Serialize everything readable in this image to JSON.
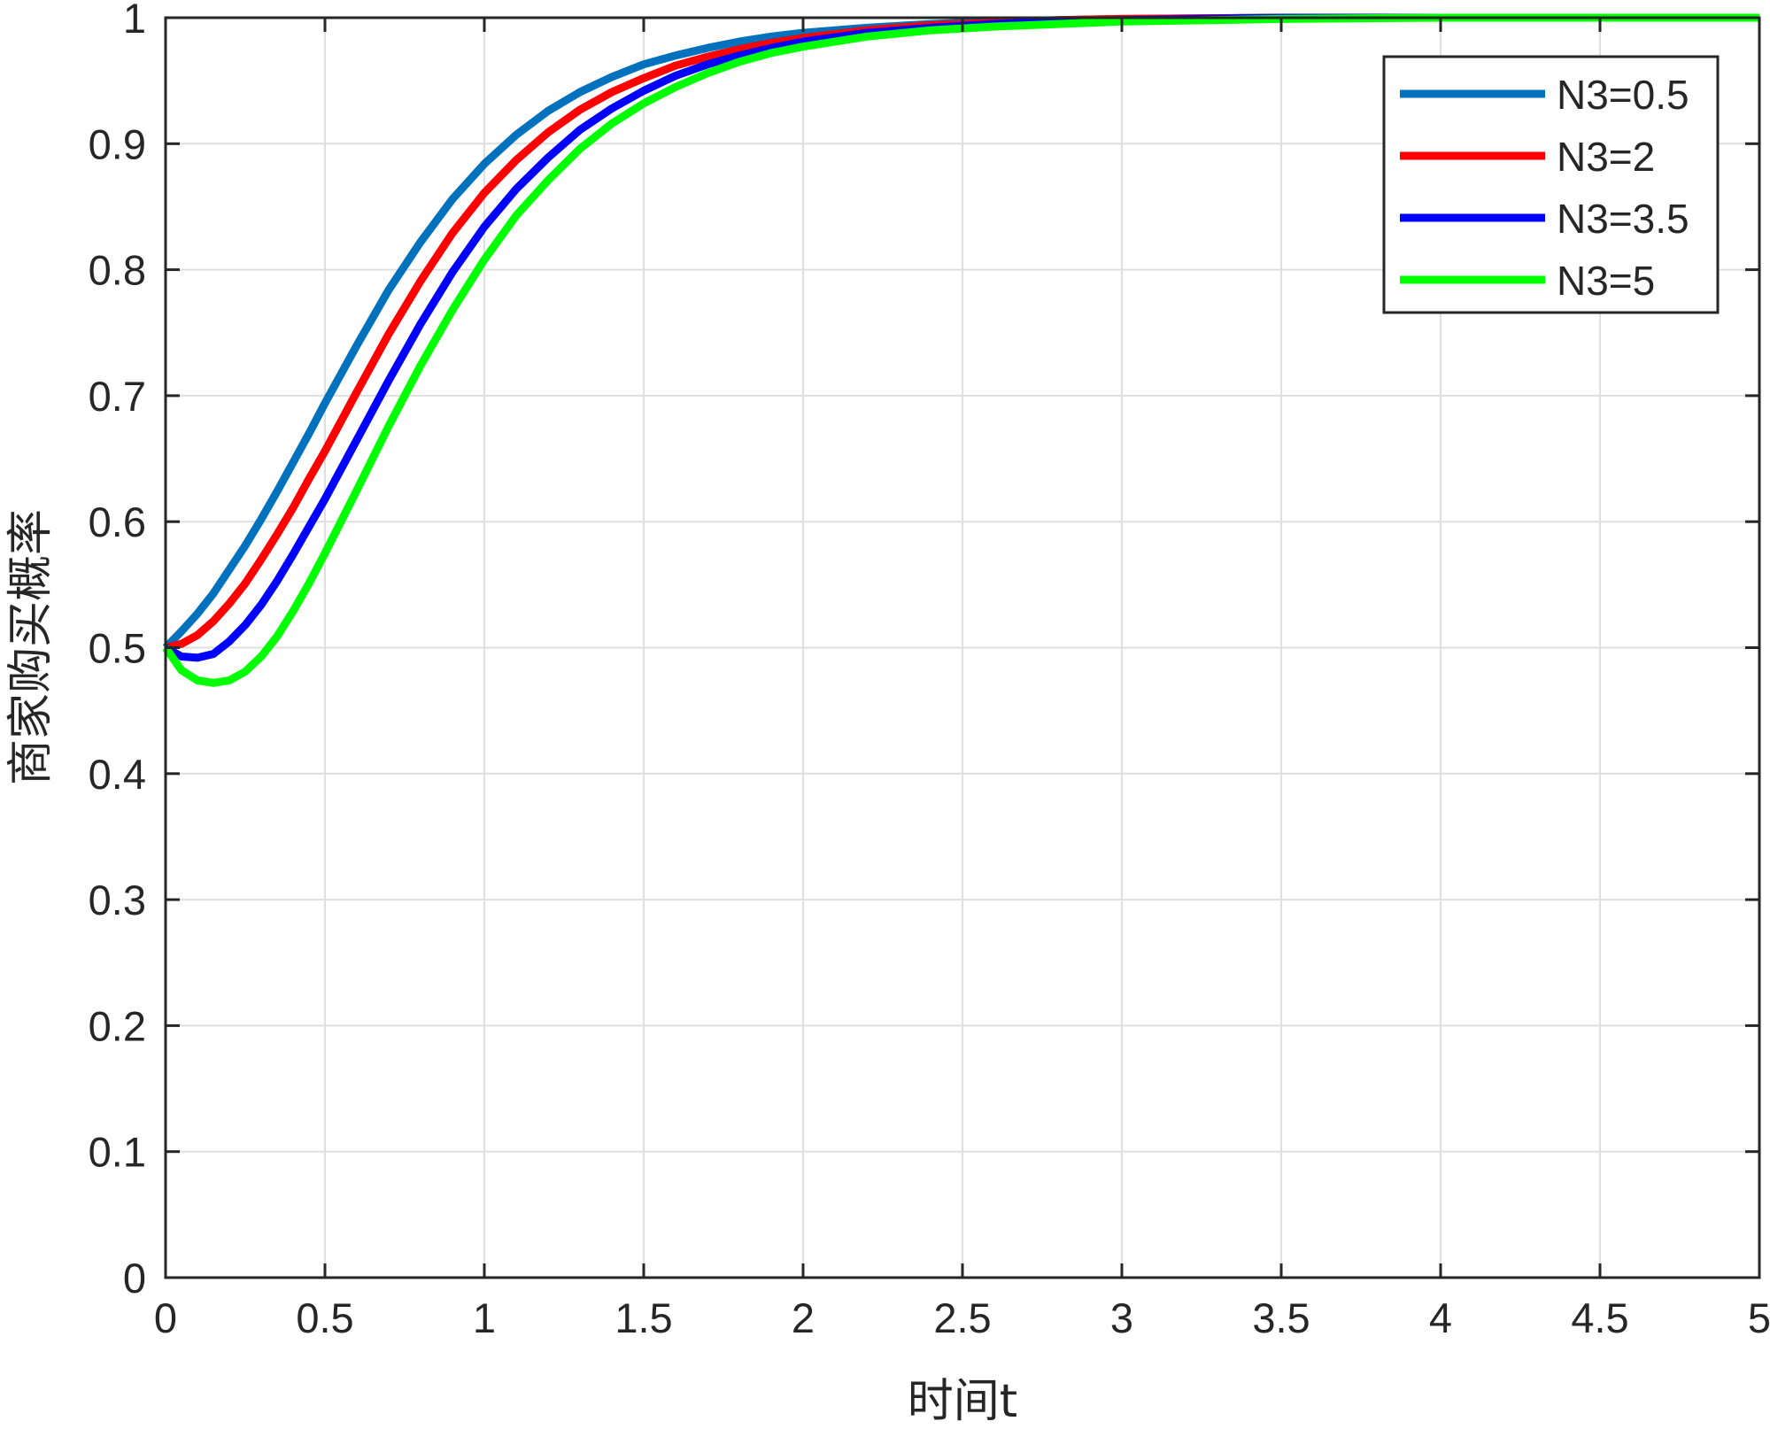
{
  "chart_data": {
    "type": "line",
    "title": "",
    "xlabel": "时间t",
    "ylabel": "商家购买概率",
    "xlim": [
      0,
      5
    ],
    "ylim": [
      0,
      1
    ],
    "xticks": [
      {
        "value": 0,
        "label": "0"
      },
      {
        "value": 0.5,
        "label": "0.5"
      },
      {
        "value": 1,
        "label": "1"
      },
      {
        "value": 1.5,
        "label": "1.5"
      },
      {
        "value": 2,
        "label": "2"
      },
      {
        "value": 2.5,
        "label": "2.5"
      },
      {
        "value": 3,
        "label": "3"
      },
      {
        "value": 3.5,
        "label": "3.5"
      },
      {
        "value": 4,
        "label": "4"
      },
      {
        "value": 4.5,
        "label": "4.5"
      },
      {
        "value": 5,
        "label": "5"
      }
    ],
    "yticks": [
      {
        "value": 0,
        "label": "0"
      },
      {
        "value": 0.1,
        "label": "0.1"
      },
      {
        "value": 0.2,
        "label": "0.2"
      },
      {
        "value": 0.3,
        "label": "0.3"
      },
      {
        "value": 0.4,
        "label": "0.4"
      },
      {
        "value": 0.5,
        "label": "0.5"
      },
      {
        "value": 0.6,
        "label": "0.6"
      },
      {
        "value": 0.7,
        "label": "0.7"
      },
      {
        "value": 0.8,
        "label": "0.8"
      },
      {
        "value": 0.9,
        "label": "0.9"
      },
      {
        "value": 1,
        "label": "1"
      }
    ],
    "grid": true,
    "legend_position": "top-right",
    "x": [
      0,
      0.05,
      0.1,
      0.15,
      0.2,
      0.25,
      0.3,
      0.35,
      0.4,
      0.45,
      0.5,
      0.6,
      0.7,
      0.8,
      0.9,
      1.0,
      1.1,
      1.2,
      1.3,
      1.4,
      1.5,
      1.6,
      1.7,
      1.8,
      1.9,
      2.0,
      2.2,
      2.4,
      2.6,
      2.8,
      3.0,
      3.5,
      4.0,
      4.5,
      5.0
    ],
    "series": [
      {
        "name": "N3=0.5",
        "color": "#0072bd",
        "values": [
          0.5,
          0.513,
          0.527,
          0.543,
          0.562,
          0.581,
          0.602,
          0.624,
          0.647,
          0.67,
          0.694,
          0.74,
          0.784,
          0.822,
          0.856,
          0.884,
          0.907,
          0.926,
          0.941,
          0.953,
          0.963,
          0.97,
          0.976,
          0.981,
          0.985,
          0.988,
          0.992,
          0.995,
          0.997,
          0.998,
          0.999,
          1.0,
          1.0,
          1.0,
          1.0
        ]
      },
      {
        "name": "N3=2",
        "color": "#ff0000",
        "values": [
          0.5,
          0.503,
          0.51,
          0.521,
          0.535,
          0.551,
          0.57,
          0.59,
          0.611,
          0.634,
          0.656,
          0.703,
          0.749,
          0.791,
          0.829,
          0.861,
          0.887,
          0.909,
          0.927,
          0.941,
          0.952,
          0.962,
          0.969,
          0.975,
          0.98,
          0.984,
          0.99,
          0.994,
          0.996,
          0.998,
          0.999,
          1.0,
          1.0,
          1.0,
          1.0
        ]
      },
      {
        "name": "N3=3.5",
        "color": "#0000ff",
        "values": [
          0.5,
          0.493,
          0.492,
          0.495,
          0.505,
          0.518,
          0.534,
          0.553,
          0.574,
          0.596,
          0.618,
          0.665,
          0.712,
          0.757,
          0.798,
          0.834,
          0.864,
          0.889,
          0.911,
          0.928,
          0.942,
          0.954,
          0.963,
          0.97,
          0.976,
          0.981,
          0.988,
          0.992,
          0.995,
          0.997,
          0.998,
          1.0,
          1.0,
          1.0,
          1.0
        ]
      },
      {
        "name": "N3=5",
        "color": "#00ff00",
        "values": [
          0.5,
          0.482,
          0.474,
          0.472,
          0.474,
          0.481,
          0.493,
          0.509,
          0.529,
          0.551,
          0.575,
          0.625,
          0.676,
          0.724,
          0.768,
          0.808,
          0.843,
          0.871,
          0.896,
          0.916,
          0.932,
          0.945,
          0.956,
          0.965,
          0.972,
          0.977,
          0.985,
          0.99,
          0.993,
          0.995,
          0.997,
          0.999,
          1.0,
          1.0,
          1.0
        ]
      }
    ]
  }
}
